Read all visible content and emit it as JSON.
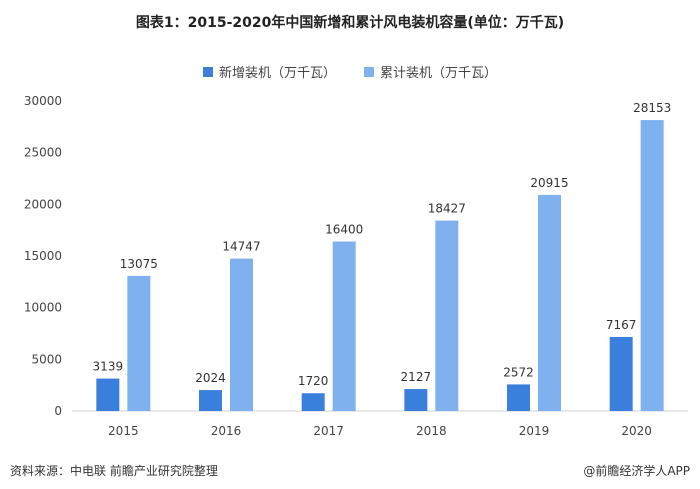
{
  "title": "图表1：2015-2020年中国新增和累计风电装机容量(单位：万千瓦)",
  "footer": {
    "source": "资料来源：中电联 前瞻产业研究院整理",
    "credit": "@前瞻经济学人APP"
  },
  "colors": {
    "new": "#3a7fdc",
    "cumulative": "#7fb1ee"
  },
  "chart_data": {
    "type": "bar",
    "title": "图表1：2015-2020年中国新增和累计风电装机容量(单位：万千瓦)",
    "xlabel": "",
    "ylabel": "",
    "categories": [
      "2015",
      "2016",
      "2017",
      "2018",
      "2019",
      "2020"
    ],
    "series": [
      {
        "name": "新增装机（万千瓦）",
        "values": [
          3139,
          2024,
          1720,
          2127,
          2572,
          7167
        ]
      },
      {
        "name": "累计装机（万千瓦）",
        "values": [
          13075,
          14747,
          16400,
          18427,
          20915,
          28153
        ]
      }
    ],
    "ylim": [
      0,
      30000
    ],
    "yticks": [
      0,
      5000,
      10000,
      15000,
      20000,
      25000,
      30000
    ],
    "grid": false,
    "legend": "top-center",
    "data_labels": true
  }
}
